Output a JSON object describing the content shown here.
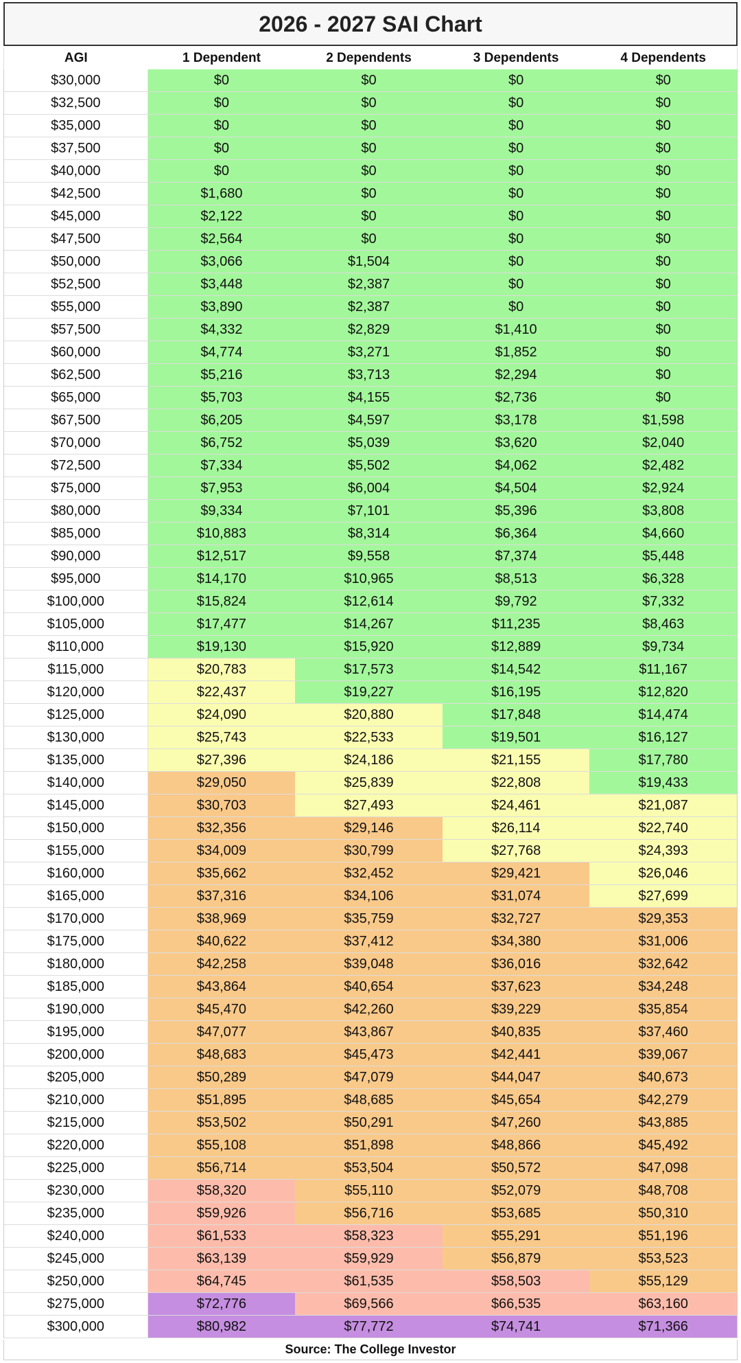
{
  "chart_data": {
    "type": "table",
    "title": "2026 - 2027 SAI Chart",
    "columns": [
      "AGI",
      "1 Dependent",
      "2 Dependents",
      "3 Dependents",
      "4 Dependents"
    ],
    "rows": [
      [
        "$30,000",
        "$0",
        "$0",
        "$0",
        "$0"
      ],
      [
        "$32,500",
        "$0",
        "$0",
        "$0",
        "$0"
      ],
      [
        "$35,000",
        "$0",
        "$0",
        "$0",
        "$0"
      ],
      [
        "$37,500",
        "$0",
        "$0",
        "$0",
        "$0"
      ],
      [
        "$40,000",
        "$0",
        "$0",
        "$0",
        "$0"
      ],
      [
        "$42,500",
        "$1,680",
        "$0",
        "$0",
        "$0"
      ],
      [
        "$45,000",
        "$2,122",
        "$0",
        "$0",
        "$0"
      ],
      [
        "$47,500",
        "$2,564",
        "$0",
        "$0",
        "$0"
      ],
      [
        "$50,000",
        "$3,066",
        "$1,504",
        "$0",
        "$0"
      ],
      [
        "$52,500",
        "$3,448",
        "$2,387",
        "$0",
        "$0"
      ],
      [
        "$55,000",
        "$3,890",
        "$2,387",
        "$0",
        "$0"
      ],
      [
        "$57,500",
        "$4,332",
        "$2,829",
        "$1,410",
        "$0"
      ],
      [
        "$60,000",
        "$4,774",
        "$3,271",
        "$1,852",
        "$0"
      ],
      [
        "$62,500",
        "$5,216",
        "$3,713",
        "$2,294",
        "$0"
      ],
      [
        "$65,000",
        "$5,703",
        "$4,155",
        "$2,736",
        "$0"
      ],
      [
        "$67,500",
        "$6,205",
        "$4,597",
        "$3,178",
        "$1,598"
      ],
      [
        "$70,000",
        "$6,752",
        "$5,039",
        "$3,620",
        "$2,040"
      ],
      [
        "$72,500",
        "$7,334",
        "$5,502",
        "$4,062",
        "$2,482"
      ],
      [
        "$75,000",
        "$7,953",
        "$6,004",
        "$4,504",
        "$2,924"
      ],
      [
        "$80,000",
        "$9,334",
        "$7,101",
        "$5,396",
        "$3,808"
      ],
      [
        "$85,000",
        "$10,883",
        "$8,314",
        "$6,364",
        "$4,660"
      ],
      [
        "$90,000",
        "$12,517",
        "$9,558",
        "$7,374",
        "$5,448"
      ],
      [
        "$95,000",
        "$14,170",
        "$10,965",
        "$8,513",
        "$6,328"
      ],
      [
        "$100,000",
        "$15,824",
        "$12,614",
        "$9,792",
        "$7,332"
      ],
      [
        "$105,000",
        "$17,477",
        "$14,267",
        "$11,235",
        "$8,463"
      ],
      [
        "$110,000",
        "$19,130",
        "$15,920",
        "$12,889",
        "$9,734"
      ],
      [
        "$115,000",
        "$20,783",
        "$17,573",
        "$14,542",
        "$11,167"
      ],
      [
        "$120,000",
        "$22,437",
        "$19,227",
        "$16,195",
        "$12,820"
      ],
      [
        "$125,000",
        "$24,090",
        "$20,880",
        "$17,848",
        "$14,474"
      ],
      [
        "$130,000",
        "$25,743",
        "$22,533",
        "$19,501",
        "$16,127"
      ],
      [
        "$135,000",
        "$27,396",
        "$24,186",
        "$21,155",
        "$17,780"
      ],
      [
        "$140,000",
        "$29,050",
        "$25,839",
        "$22,808",
        "$19,433"
      ],
      [
        "$145,000",
        "$30,703",
        "$27,493",
        "$24,461",
        "$21,087"
      ],
      [
        "$150,000",
        "$32,356",
        "$29,146",
        "$26,114",
        "$22,740"
      ],
      [
        "$155,000",
        "$34,009",
        "$30,799",
        "$27,768",
        "$24,393"
      ],
      [
        "$160,000",
        "$35,662",
        "$32,452",
        "$29,421",
        "$26,046"
      ],
      [
        "$165,000",
        "$37,316",
        "$34,106",
        "$31,074",
        "$27,699"
      ],
      [
        "$170,000",
        "$38,969",
        "$35,759",
        "$32,727",
        "$29,353"
      ],
      [
        "$175,000",
        "$40,622",
        "$37,412",
        "$34,380",
        "$31,006"
      ],
      [
        "$180,000",
        "$42,258",
        "$39,048",
        "$36,016",
        "$32,642"
      ],
      [
        "$185,000",
        "$43,864",
        "$40,654",
        "$37,623",
        "$34,248"
      ],
      [
        "$190,000",
        "$45,470",
        "$42,260",
        "$39,229",
        "$35,854"
      ],
      [
        "$195,000",
        "$47,077",
        "$43,867",
        "$40,835",
        "$37,460"
      ],
      [
        "$200,000",
        "$48,683",
        "$45,473",
        "$42,441",
        "$39,067"
      ],
      [
        "$205,000",
        "$50,289",
        "$47,079",
        "$44,047",
        "$40,673"
      ],
      [
        "$210,000",
        "$51,895",
        "$48,685",
        "$45,654",
        "$42,279"
      ],
      [
        "$215,000",
        "$53,502",
        "$50,291",
        "$47,260",
        "$43,885"
      ],
      [
        "$220,000",
        "$55,108",
        "$51,898",
        "$48,866",
        "$45,492"
      ],
      [
        "$225,000",
        "$56,714",
        "$53,504",
        "$50,572",
        "$47,098"
      ],
      [
        "$230,000",
        "$58,320",
        "$55,110",
        "$52,079",
        "$48,708"
      ],
      [
        "$235,000",
        "$59,926",
        "$56,716",
        "$53,685",
        "$50,310"
      ],
      [
        "$240,000",
        "$61,533",
        "$58,323",
        "$55,291",
        "$51,196"
      ],
      [
        "$245,000",
        "$63,139",
        "$59,929",
        "$56,879",
        "$53,523"
      ],
      [
        "$250,000",
        "$64,745",
        "$61,535",
        "$58,503",
        "$55,129"
      ],
      [
        "$275,000",
        "$72,776",
        "$69,566",
        "$66,535",
        "$63,160"
      ],
      [
        "$300,000",
        "$80,982",
        "$77,772",
        "$74,741",
        "$71,366"
      ]
    ],
    "color_bands": [
      {
        "max": 20000,
        "color": "#a3f79b"
      },
      {
        "max": 29000,
        "color": "#fafcb0"
      },
      {
        "max": 58000,
        "color": "#f9c98a"
      },
      {
        "max": 70000,
        "color": "#fdbcab"
      },
      {
        "max": 1000000,
        "color": "#c58ee0"
      }
    ],
    "source": "Source: The College Investor"
  }
}
